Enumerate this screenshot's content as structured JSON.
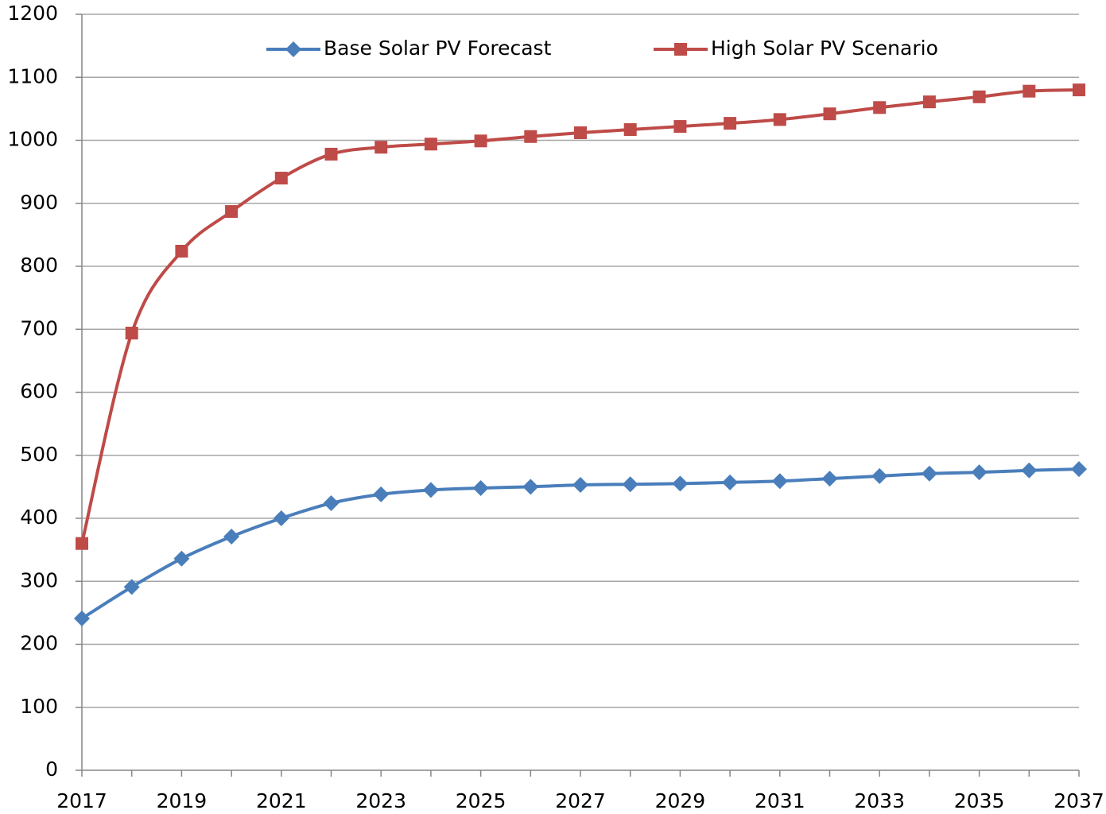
{
  "chart_data": {
    "type": "line",
    "x": [
      2017,
      2018,
      2019,
      2020,
      2021,
      2022,
      2023,
      2024,
      2025,
      2026,
      2027,
      2028,
      2029,
      2030,
      2031,
      2032,
      2033,
      2034,
      2035,
      2036,
      2037
    ],
    "series": [
      {
        "name": "Base Solar PV Forecast",
        "color": "#4a7ebb",
        "marker": "diamond",
        "values": [
          241,
          291,
          336,
          371,
          400,
          424,
          438,
          445,
          448,
          450,
          453,
          454,
          455,
          457,
          459,
          463,
          467,
          471,
          473,
          476,
          478
        ]
      },
      {
        "name": "High Solar PV Scenario",
        "color": "#be4b48",
        "marker": "square",
        "values": [
          360,
          694,
          824,
          887,
          940,
          978,
          989,
          994,
          999,
          1006,
          1012,
          1017,
          1022,
          1027,
          1033,
          1042,
          1052,
          1061,
          1069,
          1078,
          1080
        ]
      }
    ],
    "xlim": [
      2017,
      2037
    ],
    "xticks": [
      2017,
      2019,
      2021,
      2023,
      2025,
      2027,
      2029,
      2031,
      2033,
      2035,
      2037
    ],
    "ylim": [
      0,
      1200
    ],
    "yticks": [
      0,
      100,
      200,
      300,
      400,
      500,
      600,
      700,
      800,
      900,
      1000,
      1100,
      1200
    ],
    "grid": true,
    "legend": "top",
    "smooth": true
  }
}
